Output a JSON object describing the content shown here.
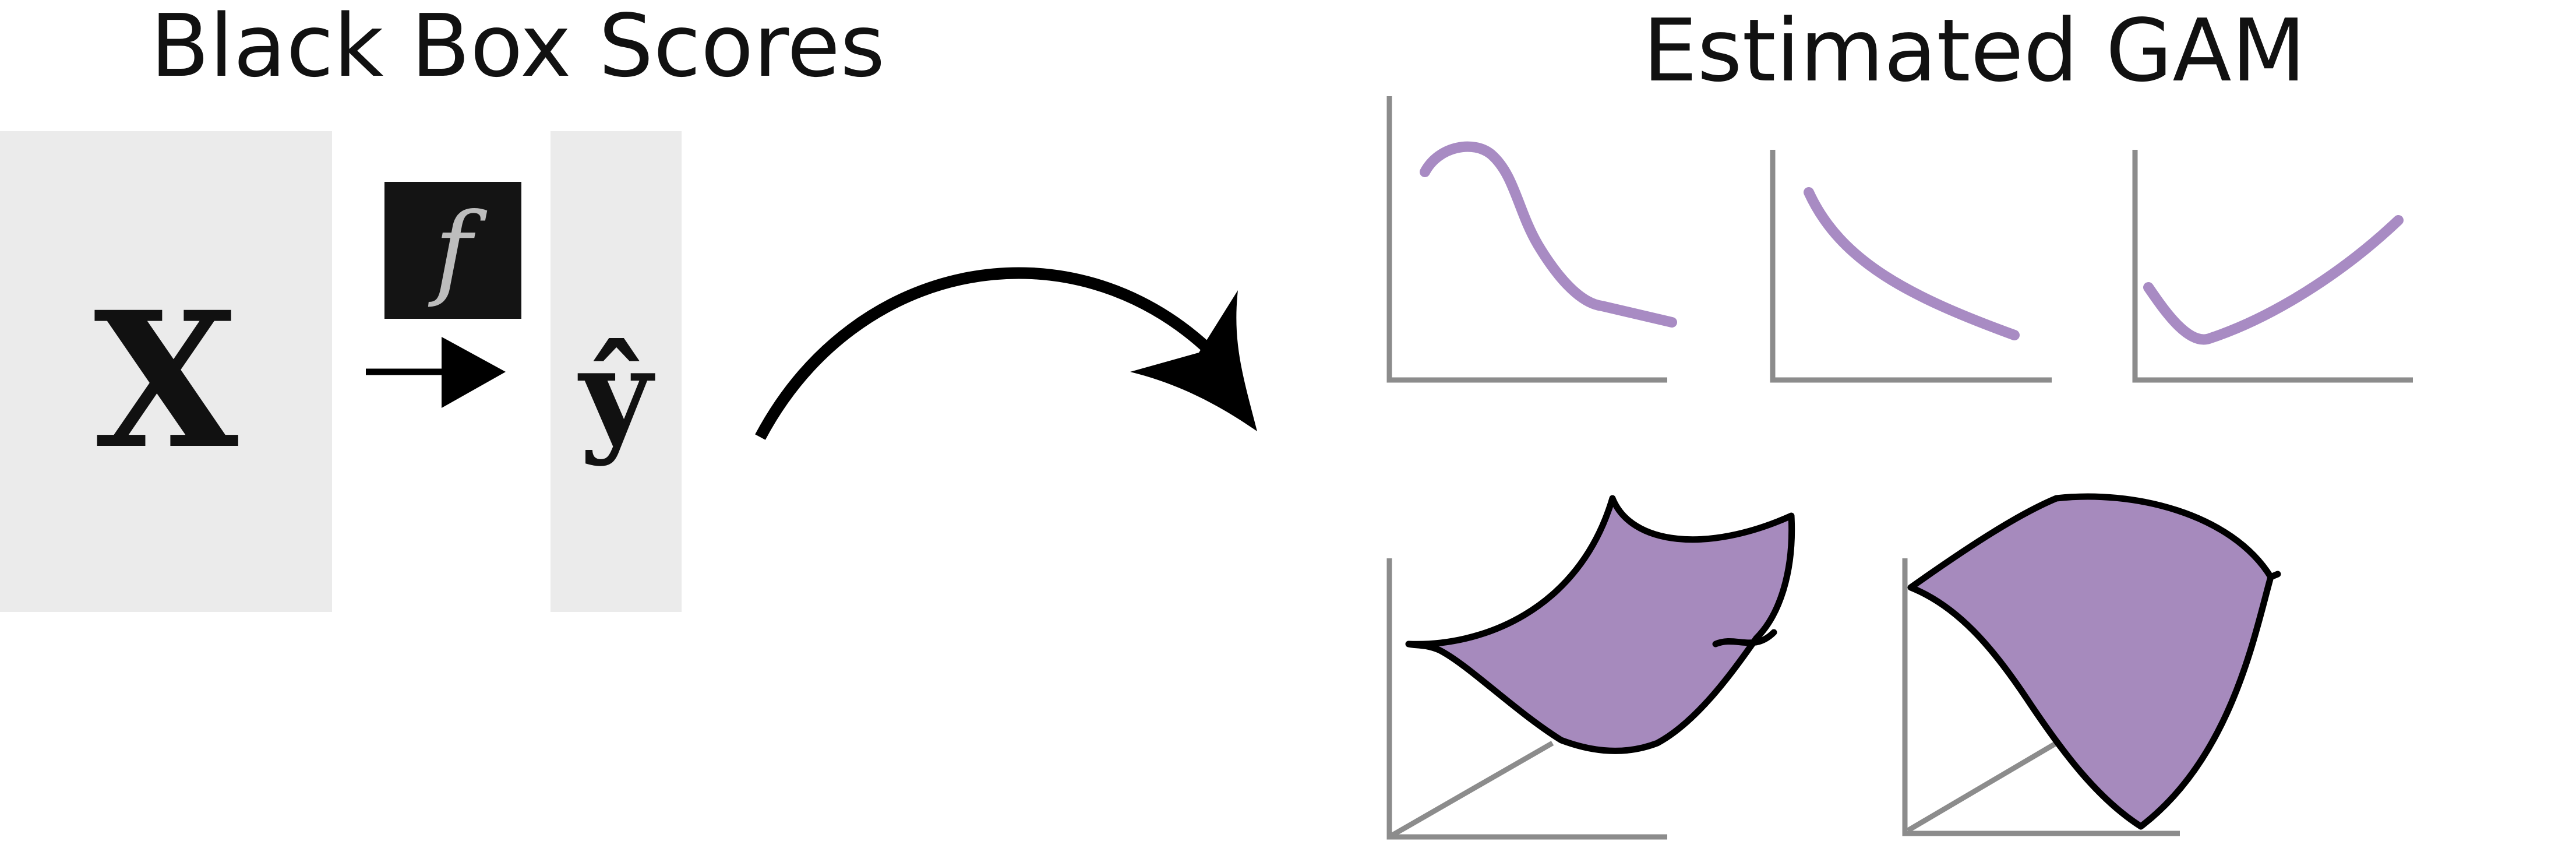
{
  "left_panel": {
    "title": "Black Box Scores",
    "input_symbol": "X",
    "model_symbol": "f",
    "output_symbol": "ŷ"
  },
  "right_panel": {
    "title": "Estimated GAM"
  },
  "colors": {
    "panel_gray": "#ebebeb",
    "model_box": "#141414",
    "shape_curve": "#a88bc3",
    "surface_fill": "#a68abd",
    "axis_gray": "#8c8c8c",
    "arrow": "#000000"
  }
}
